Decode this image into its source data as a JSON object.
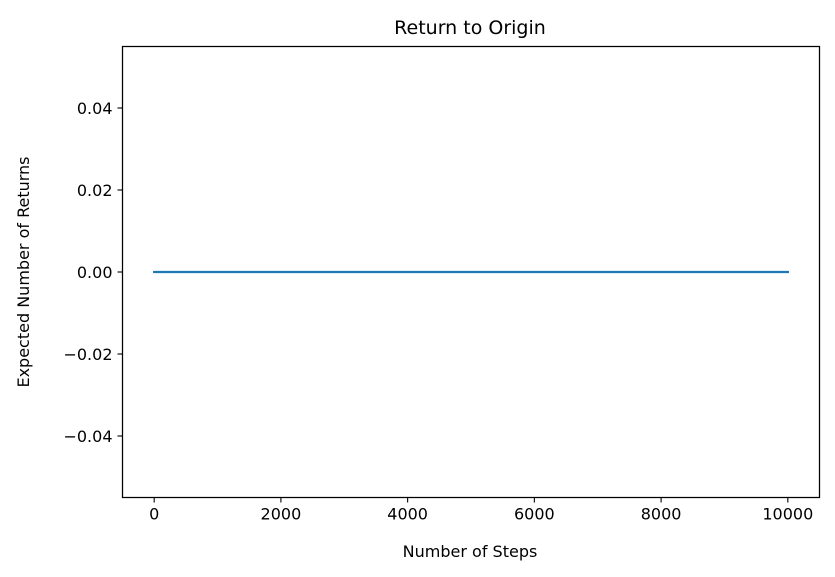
{
  "chart_data": {
    "type": "line",
    "title": "Return to Origin",
    "xlabel": "Number of Steps",
    "ylabel": "Expected Number of Returns",
    "xlim": [
      -500,
      10500
    ],
    "ylim": [
      -0.055,
      0.055
    ],
    "x_ticks": [
      0,
      2000,
      4000,
      6000,
      8000,
      10000
    ],
    "x_tick_labels": [
      "0",
      "2000",
      "4000",
      "6000",
      "8000",
      "10000"
    ],
    "y_ticks": [
      0.04,
      0.02,
      0.0,
      -0.02,
      -0.04
    ],
    "y_tick_labels": [
      "0.04",
      "0.02",
      "0.00",
      "−0.02",
      "−0.04"
    ],
    "grid": false,
    "series": [
      {
        "color": "#1f77b4",
        "x": [
          0,
          10000
        ],
        "y": [
          0,
          0
        ]
      }
    ]
  }
}
